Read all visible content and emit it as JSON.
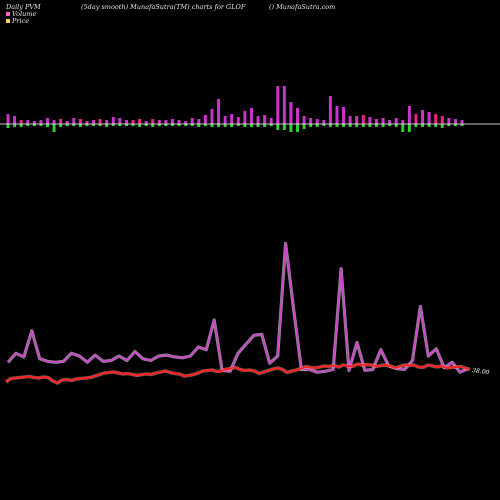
{
  "header": {
    "left": "Daily PVM",
    "middle": "(5day smooth) MunafaSutra(TM) charts for GLOF",
    "right": "() MunafaSutra.com"
  },
  "legend": [
    {
      "label": "Volume",
      "color": "#ff66cc"
    },
    {
      "label": "Price",
      "color": "#ffcc66"
    }
  ],
  "chart_data": {
    "type": "line",
    "ticker": "GLOF",
    "price_label": "38.00",
    "colors": {
      "volume_up": "#cc33cc",
      "volume_down": "#33cc33",
      "volume_line": "#cc44cc",
      "price_line": "#ff2222",
      "baseline": "#ffffff"
    },
    "bars": [
      {
        "up": 10,
        "down": 4,
        "dir": "up"
      },
      {
        "up": 8,
        "down": 3,
        "dir": "up"
      },
      {
        "up": 4,
        "down": 3,
        "dir": "down"
      },
      {
        "up": 4,
        "down": 2,
        "dir": "up"
      },
      {
        "up": 3,
        "down": 2,
        "dir": "up"
      },
      {
        "up": 4,
        "down": 2,
        "dir": "up"
      },
      {
        "up": 6,
        "down": 3,
        "dir": "up"
      },
      {
        "up": 4,
        "down": 8,
        "dir": "up"
      },
      {
        "up": 5,
        "down": 3,
        "dir": "down"
      },
      {
        "up": 3,
        "down": 2,
        "dir": "up"
      },
      {
        "up": 6,
        "down": 2,
        "dir": "up"
      },
      {
        "up": 5,
        "down": 3,
        "dir": "down"
      },
      {
        "up": 3,
        "down": 2,
        "dir": "up"
      },
      {
        "up": 4,
        "down": 2,
        "dir": "up"
      },
      {
        "up": 5,
        "down": 2,
        "dir": "down"
      },
      {
        "up": 4,
        "down": 3,
        "dir": "up"
      },
      {
        "up": 7,
        "down": 2,
        "dir": "up"
      },
      {
        "up": 6,
        "down": 2,
        "dir": "up"
      },
      {
        "up": 4,
        "down": 2,
        "dir": "up"
      },
      {
        "up": 4,
        "down": 2,
        "dir": "down"
      },
      {
        "up": 5,
        "down": 3,
        "dir": "down"
      },
      {
        "up": 3,
        "down": 2,
        "dir": "up"
      },
      {
        "up": 5,
        "down": 3,
        "dir": "down"
      },
      {
        "up": 4,
        "down": 2,
        "dir": "up"
      },
      {
        "up": 4,
        "down": 2,
        "dir": "up"
      },
      {
        "up": 5,
        "down": 2,
        "dir": "up"
      },
      {
        "up": 4,
        "down": 2,
        "dir": "up"
      },
      {
        "up": 3,
        "down": 2,
        "dir": "up"
      },
      {
        "up": 6,
        "down": 2,
        "dir": "up"
      },
      {
        "up": 5,
        "down": 3,
        "dir": "up"
      },
      {
        "up": 9,
        "down": 2,
        "dir": "up"
      },
      {
        "up": 15,
        "down": 3,
        "dir": "up"
      },
      {
        "up": 25,
        "down": 3,
        "dir": "up"
      },
      {
        "up": 8,
        "down": 3,
        "dir": "up"
      },
      {
        "up": 10,
        "down": 3,
        "dir": "up"
      },
      {
        "up": 7,
        "down": 2,
        "dir": "up"
      },
      {
        "up": 13,
        "down": 3,
        "dir": "up"
      },
      {
        "up": 16,
        "down": 3,
        "dir": "up"
      },
      {
        "up": 8,
        "down": 3,
        "dir": "up"
      },
      {
        "up": 9,
        "down": 3,
        "dir": "up"
      },
      {
        "up": 6,
        "down": 2,
        "dir": "up"
      },
      {
        "up": 38,
        "down": 6,
        "dir": "up"
      },
      {
        "up": 38,
        "down": 6,
        "dir": "up"
      },
      {
        "up": 22,
        "down": 8,
        "dir": "up"
      },
      {
        "up": 16,
        "down": 8,
        "dir": "up"
      },
      {
        "up": 8,
        "down": 5,
        "dir": "up"
      },
      {
        "up": 6,
        "down": 3,
        "dir": "up"
      },
      {
        "up": 5,
        "down": 3,
        "dir": "up"
      },
      {
        "up": 4,
        "down": 2,
        "dir": "up"
      },
      {
        "up": 28,
        "down": 3,
        "dir": "up"
      },
      {
        "up": 18,
        "down": 3,
        "dir": "up"
      },
      {
        "up": 17,
        "down": 3,
        "dir": "up"
      },
      {
        "up": 8,
        "down": 3,
        "dir": "up"
      },
      {
        "up": 8,
        "down": 3,
        "dir": "up"
      },
      {
        "up": 9,
        "down": 3,
        "dir": "down"
      },
      {
        "up": 7,
        "down": 3,
        "dir": "up"
      },
      {
        "up": 5,
        "down": 3,
        "dir": "up"
      },
      {
        "up": 6,
        "down": 3,
        "dir": "up"
      },
      {
        "up": 4,
        "down": 2,
        "dir": "up"
      },
      {
        "up": 6,
        "down": 3,
        "dir": "up"
      },
      {
        "up": 4,
        "down": 8,
        "dir": "up"
      },
      {
        "up": 18,
        "down": 8,
        "dir": "up"
      },
      {
        "up": 10,
        "down": 3,
        "dir": "down"
      },
      {
        "up": 14,
        "down": 3,
        "dir": "up"
      },
      {
        "up": 12,
        "down": 3,
        "dir": "up"
      },
      {
        "up": 10,
        "down": 3,
        "dir": "down"
      },
      {
        "up": 8,
        "down": 4,
        "dir": "down"
      },
      {
        "up": 6,
        "down": 2,
        "dir": "up"
      },
      {
        "up": 5,
        "down": 2,
        "dir": "up"
      },
      {
        "up": 4,
        "down": 2,
        "dir": "up"
      }
    ],
    "volume_line": [
      13,
      23,
      19,
      48,
      17,
      14,
      13,
      14,
      23,
      20,
      13,
      21,
      14,
      15,
      20,
      15,
      25,
      17,
      15,
      20,
      21,
      19,
      18,
      20,
      30,
      27,
      60,
      4,
      3,
      23,
      33,
      43,
      44,
      12,
      20,
      145,
      73,
      5,
      5,
      2,
      3,
      5,
      117,
      4,
      35,
      4,
      5,
      27,
      9,
      6,
      5,
      15,
      75,
      20,
      28,
      7,
      13,
      2,
      6
    ],
    "price_line": [
      -10,
      -3,
      -2,
      -1,
      0,
      1,
      -1,
      -2,
      0,
      -1,
      -8,
      -12,
      -6,
      -5,
      -7,
      -4,
      -3,
      -2,
      -1,
      2,
      5,
      8,
      9,
      10,
      8,
      6,
      7,
      5,
      3,
      5,
      6,
      5,
      8,
      10,
      12,
      9,
      7,
      6,
      2,
      3,
      5,
      8,
      12,
      13,
      14,
      11,
      12,
      16,
      17,
      19,
      15,
      13,
      14,
      12,
      7,
      10,
      13,
      16,
      18,
      15,
      9,
      12,
      14,
      17,
      21,
      19,
      18,
      20,
      22,
      21,
      23,
      20,
      24,
      22,
      21,
      26,
      24,
      25,
      24,
      21,
      23,
      24,
      22,
      18,
      21,
      24,
      23,
      24,
      20,
      19,
      24,
      22,
      20,
      22,
      18,
      19,
      20,
      21,
      18,
      15
    ],
    "volume_line_count": 59
  }
}
